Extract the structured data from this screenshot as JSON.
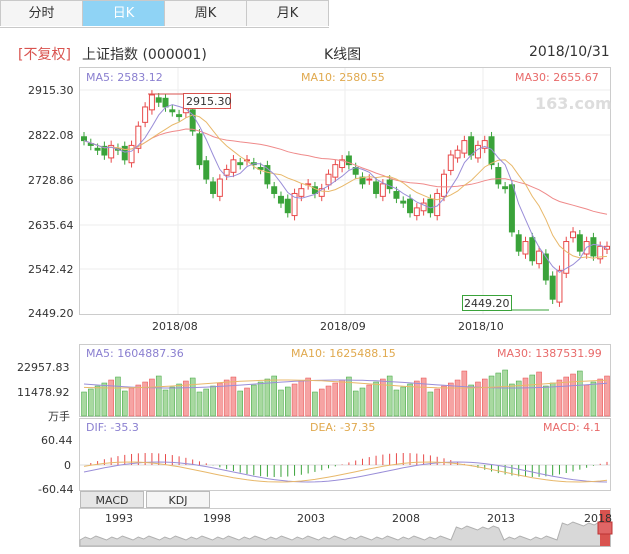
{
  "tabs": [
    "分时",
    "日K",
    "周K",
    "月K"
  ],
  "active_tab": 1,
  "header": {
    "restore_label": "[不复权]",
    "index_name": "上证指数 (000001)",
    "chart_title": "K线图",
    "date": "2018/10/31"
  },
  "watermark": "163.com",
  "kline": {
    "ma5": "MA5: 2583.12",
    "ma10": "MA10: 2580.55",
    "ma30": "MA30: 2655.67",
    "y_ticks": [
      "2915.30",
      "2822.08",
      "2728.86",
      "2635.64",
      "2542.42",
      "2449.20"
    ],
    "x_ticks": [
      "2018/08",
      "2018/09",
      "2018/10"
    ],
    "high_label": "2915.30",
    "low_label": "2449.20"
  },
  "volume": {
    "ma5": "MA5: 1604887.36",
    "ma10": "MA10: 1625488.15",
    "ma30": "MA30: 1387531.99",
    "y_ticks": [
      "22957.83",
      "11478.92"
    ],
    "unit": "万手"
  },
  "macd": {
    "dif": "DIF: -35.3",
    "dea": "DEA: -37.35",
    "macd": "MACD: 4.1",
    "y_ticks": [
      "60.44",
      "0",
      "-60.44"
    ]
  },
  "subtabs": [
    "MACD",
    "KDJ"
  ],
  "timeline": {
    "years": [
      "1993",
      "1998",
      "2003",
      "2008",
      "2013",
      "2018"
    ]
  },
  "colors": {
    "up": "#e84a4a",
    "down": "#3aa33a",
    "ma5": "#9a8ed8",
    "ma10": "#e8b86a",
    "ma30": "#ef8a8a",
    "active_tab": "#8fd3f5"
  }
}
